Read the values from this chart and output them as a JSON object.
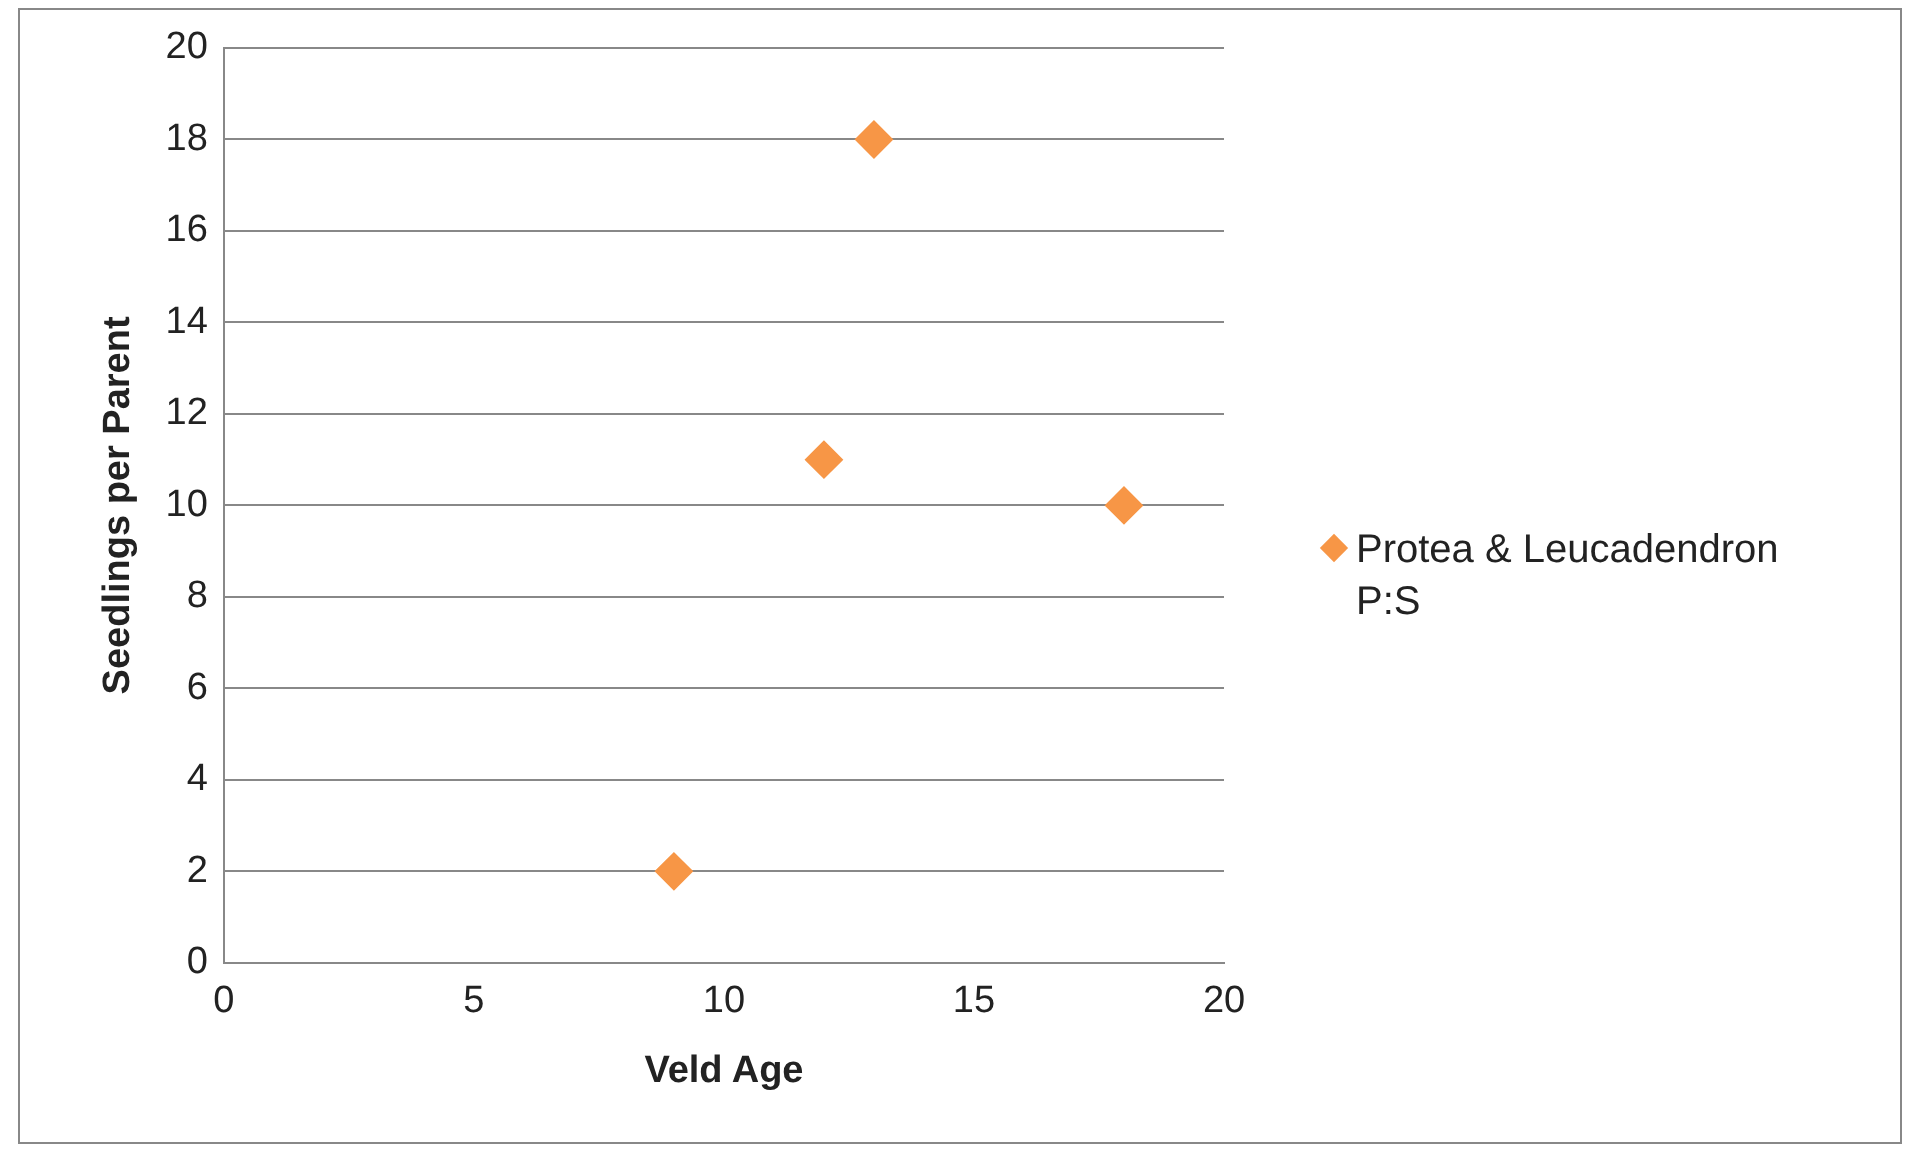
{
  "chart_data": {
    "type": "scatter",
    "xlabel": "Veld Age",
    "ylabel": "Seedlings per Parent",
    "series": [
      {
        "name": "Protea & Leucadendron P:S",
        "color": "#f79646",
        "x": [
          9,
          12,
          13,
          18
        ],
        "values": [
          2,
          11,
          18,
          10
        ]
      }
    ],
    "xlim": [
      0,
      20
    ],
    "xticks": [
      0,
      5,
      10,
      15,
      20
    ],
    "ylim": [
      0,
      20
    ],
    "yticks": [
      0,
      2,
      4,
      6,
      8,
      10,
      12,
      14,
      16,
      18,
      20
    ],
    "grid": "y",
    "legend": "right",
    "marker": "diamond"
  }
}
